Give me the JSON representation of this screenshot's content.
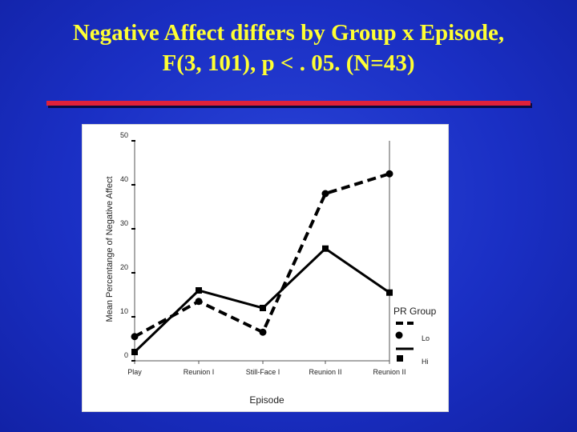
{
  "slide": {
    "title_line1": "Negative Affect differs by Group x Episode,",
    "title_line2": "F(3, 101), p < . 05. (N=43)"
  },
  "colors": {
    "background": "#1a2fc4",
    "title": "#ffff33",
    "rule": "#e0213a",
    "panel": "#ffffff",
    "series": "#000000"
  },
  "chart_data": {
    "type": "line",
    "xlabel": "Episode",
    "ylabel": "Mean Percentange of Negative Affect",
    "categories": [
      "Play",
      "Reunion I",
      "Still-Face I",
      "Reunion II",
      "Reunion II"
    ],
    "yticks": [
      0,
      10,
      20,
      30,
      40,
      50
    ],
    "ylim": [
      0,
      50
    ],
    "grid": false,
    "legend_title": "PR Group",
    "legend_position": "right",
    "series": [
      {
        "name": "Lo",
        "style": "dashed",
        "marker": "circle",
        "values": [
          5.5,
          13.5,
          6.5,
          38,
          42.5
        ]
      },
      {
        "name": "Hi",
        "style": "solid",
        "marker": "square",
        "values": [
          2,
          16,
          12,
          25.5,
          15.5
        ]
      }
    ]
  }
}
